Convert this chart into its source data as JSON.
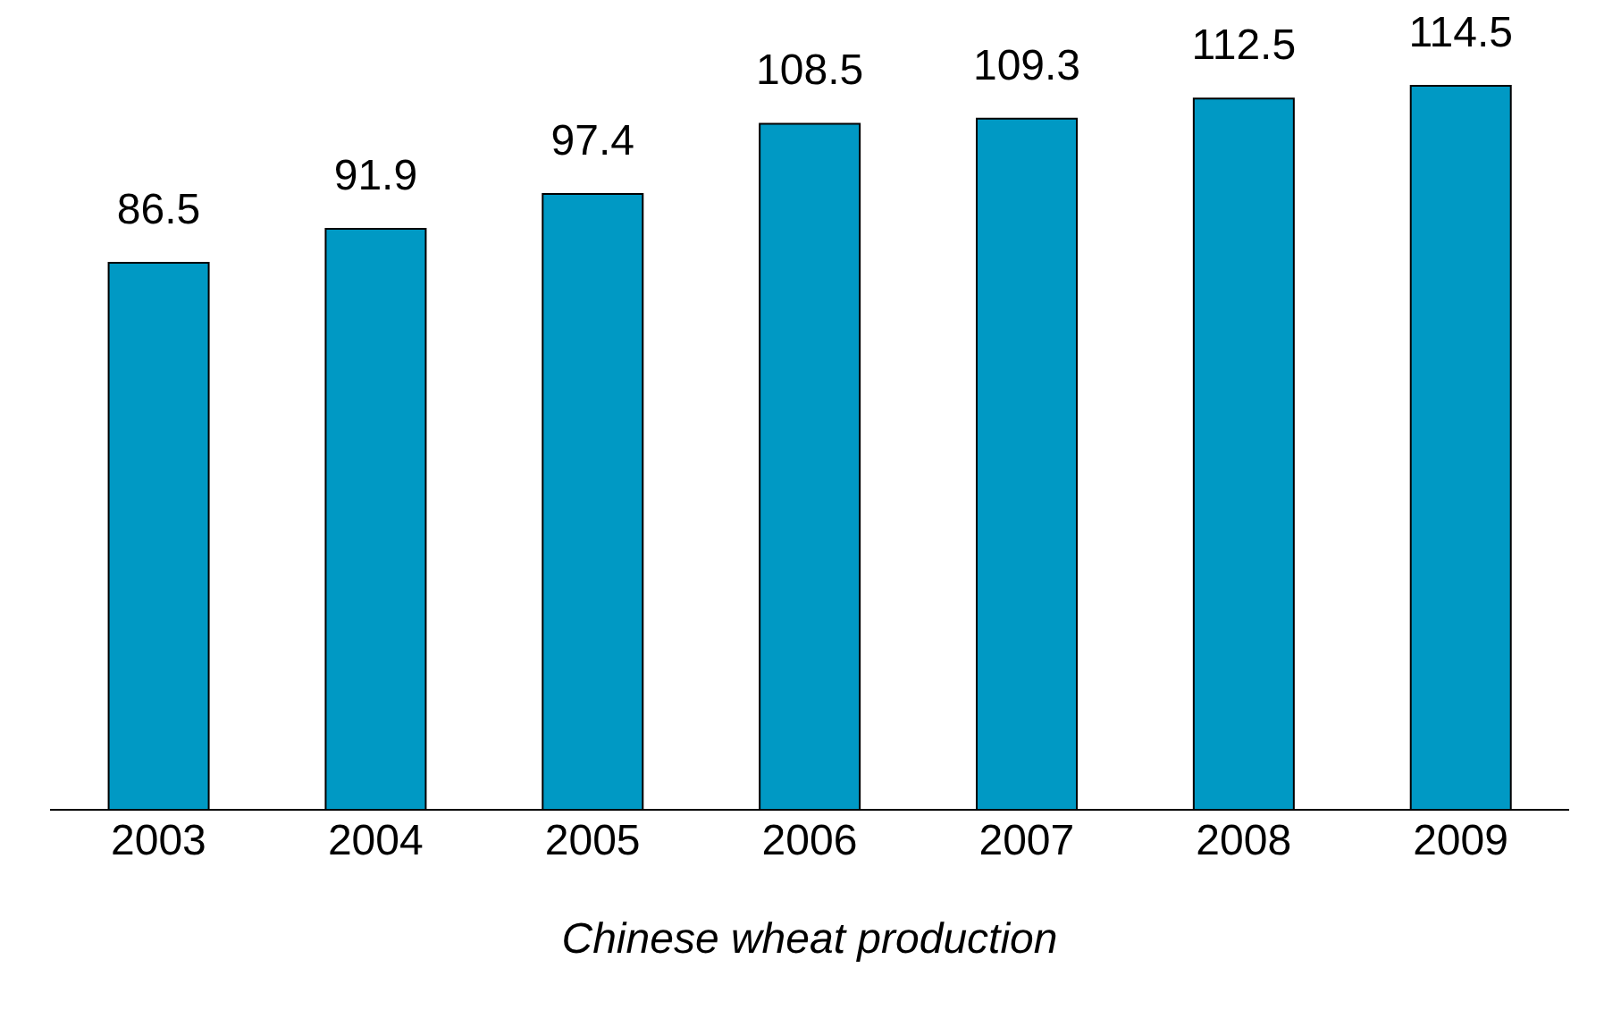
{
  "chart_data": {
    "type": "bar",
    "xlabel": "Chinese wheat production",
    "categories": [
      "2003",
      "2004",
      "2005",
      "2006",
      "2007",
      "2008",
      "2009"
    ],
    "values": [
      86.5,
      91.9,
      97.4,
      108.5,
      109.3,
      112.5,
      114.5
    ],
    "color": "#0099c4",
    "data_labels": true,
    "grid": false,
    "legend": false
  }
}
